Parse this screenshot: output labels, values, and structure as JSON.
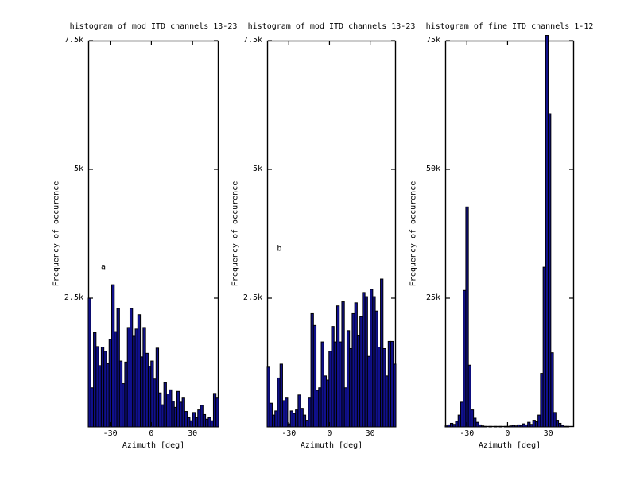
{
  "figure": {
    "background": "#ffffff",
    "bar_fill": "#10108c",
    "bar_edge": "#000000",
    "axis_color": "#000000",
    "text_color": "#000000"
  },
  "chart_data": [
    {
      "type": "bar",
      "title": "histogram of mod ITD channels 13-23",
      "xlabel": "Azimuth [deg]",
      "ylabel": "Frequency of occurence",
      "xlim": [
        -46,
        49
      ],
      "ylim": [
        0,
        7500
      ],
      "xticks": [
        -30,
        0,
        30
      ],
      "xtick_labels": [
        "-30",
        "0",
        "30"
      ],
      "yticks": [
        2500,
        5000,
        7500
      ],
      "ytick_labels": [
        "2.5k",
        "5k",
        "7.5k"
      ],
      "grid": false,
      "annotation": {
        "text": "a",
        "x": -35,
        "y": 3100
      },
      "bin_start": -46,
      "bin_width": 1.9,
      "values": [
        2500,
        760,
        1830,
        1560,
        1190,
        1550,
        1470,
        1230,
        1700,
        2760,
        1850,
        2300,
        1280,
        840,
        1260,
        1930,
        2300,
        1760,
        1900,
        2180,
        1360,
        1930,
        1430,
        1180,
        1280,
        930,
        1530,
        660,
        430,
        860,
        640,
        720,
        500,
        380,
        690,
        480,
        560,
        300,
        180,
        120,
        280,
        180,
        330,
        420,
        240,
        150,
        180,
        120,
        650,
        560
      ]
    },
    {
      "type": "bar",
      "title": "histogram of mod ITD channels 13-23",
      "xlabel": "Azimuth [deg]",
      "ylabel": "Frequency of occurence",
      "xlim": [
        -46,
        49
      ],
      "ylim": [
        0,
        7500
      ],
      "xticks": [
        -30,
        0,
        30
      ],
      "xtick_labels": [
        "-30",
        "0",
        "30"
      ],
      "yticks": [
        2500,
        5000,
        7500
      ],
      "ytick_labels": [
        "2.5k",
        "5k",
        "7.5k"
      ],
      "grid": false,
      "annotation": {
        "text": "b",
        "x": -37,
        "y": 3450
      },
      "bin_start": -46,
      "bin_width": 1.9,
      "values": [
        1160,
        460,
        230,
        310,
        950,
        1220,
        510,
        560,
        60,
        310,
        260,
        330,
        620,
        360,
        230,
        130,
        560,
        2200,
        1970,
        710,
        760,
        1650,
        990,
        910,
        1470,
        1950,
        1650,
        2350,
        1650,
        2430,
        760,
        1870,
        1520,
        2200,
        2410,
        1770,
        2140,
        2610,
        2530,
        1370,
        2670,
        2530,
        2250,
        1550,
        2870,
        1520,
        990,
        1660,
        1660,
        1220
      ]
    },
    {
      "type": "bar",
      "title": "histogram of fine ITD channels 1-12",
      "xlabel": "Azimuth [deg]",
      "ylabel": "Frequency of occurence",
      "xlim": [
        -46,
        49
      ],
      "ylim": [
        0,
        75000
      ],
      "xticks": [
        -30,
        0,
        30
      ],
      "xtick_labels": [
        "-30",
        "0",
        "30"
      ],
      "yticks": [
        25000,
        50000,
        75000
      ],
      "ytick_labels": [
        "25k",
        "50k",
        "75k"
      ],
      "grid": false,
      "annotation": null,
      "bin_start": -46,
      "bin_width": 1.9,
      "values": [
        200,
        400,
        700,
        500,
        1100,
        2300,
        4800,
        26500,
        42700,
        12000,
        3300,
        1700,
        900,
        400,
        200,
        100,
        0,
        100,
        0,
        100,
        0,
        100,
        0,
        100,
        100,
        200,
        300,
        200,
        400,
        300,
        600,
        400,
        900,
        500,
        1300,
        1000,
        2300,
        10400,
        31000,
        76000,
        60800,
        14400,
        2800,
        1300,
        700,
        300,
        100,
        100,
        0,
        0
      ]
    }
  ]
}
